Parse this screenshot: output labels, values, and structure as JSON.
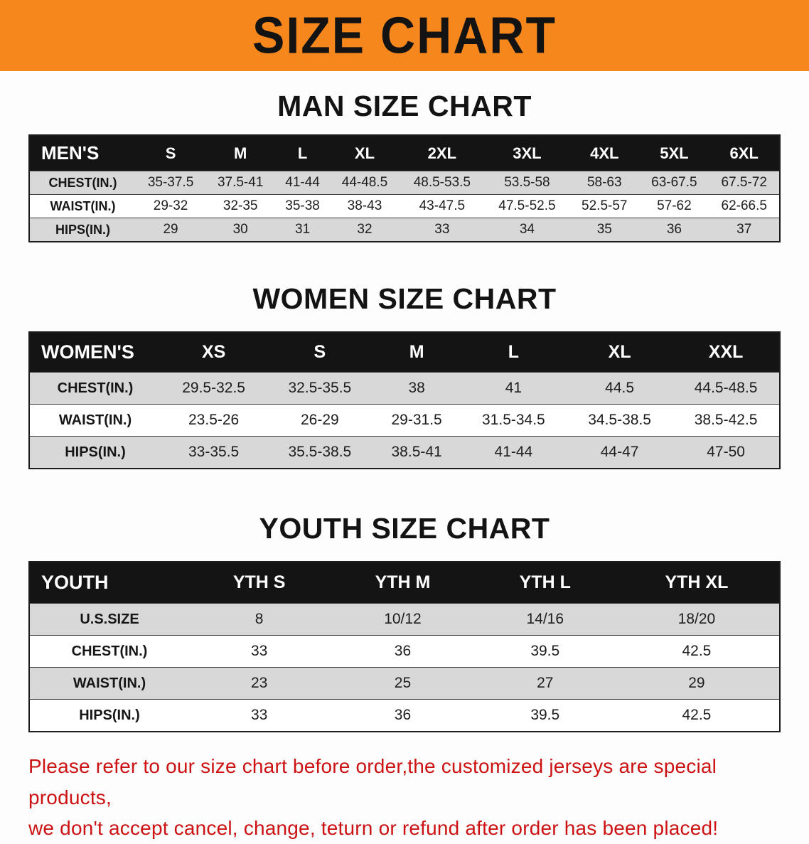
{
  "banner": {
    "title": "SIZE CHART"
  },
  "colors": {
    "banner_bg": "#f6871d",
    "table_header_bg": "#141414",
    "row_shade": "#d8d8d8",
    "disclaimer_red": "#cc1212"
  },
  "sections": [
    {
      "name": "men",
      "heading": "MAN SIZE CHART",
      "table": {
        "title": "MEN'S",
        "columns": [
          "S",
          "M",
          "L",
          "XL",
          "2XL",
          "3XL",
          "4XL",
          "5XL",
          "6XL"
        ],
        "rows": [
          {
            "label": "CHEST(IN.)",
            "values": [
              "35-37.5",
              "37.5-41",
              "41-44",
              "44-48.5",
              "48.5-53.5",
              "53.5-58",
              "58-63",
              "63-67.5",
              "67.5-72"
            ]
          },
          {
            "label": "WAIST(IN.)",
            "values": [
              "29-32",
              "32-35",
              "35-38",
              "38-43",
              "43-47.5",
              "47.5-52.5",
              "52.5-57",
              "57-62",
              "62-66.5"
            ]
          },
          {
            "label": "HIPS(IN.)",
            "values": [
              "29",
              "30",
              "31",
              "32",
              "33",
              "34",
              "35",
              "36",
              "37"
            ]
          }
        ]
      }
    },
    {
      "name": "women",
      "heading": "WOMEN SIZE CHART",
      "table": {
        "title": "WOMEN'S",
        "columns": [
          "XS",
          "S",
          "M",
          "L",
          "XL",
          "XXL"
        ],
        "rows": [
          {
            "label": "CHEST(IN.)",
            "values": [
              "29.5-32.5",
              "32.5-35.5",
              "38",
              "41",
              "44.5",
              "44.5-48.5"
            ]
          },
          {
            "label": "WAIST(IN.)",
            "values": [
              "23.5-26",
              "26-29",
              "29-31.5",
              "31.5-34.5",
              "34.5-38.5",
              "38.5-42.5"
            ]
          },
          {
            "label": "HIPS(IN.)",
            "values": [
              "33-35.5",
              "35.5-38.5",
              "38.5-41",
              "41-44",
              "44-47",
              "47-50"
            ]
          }
        ]
      }
    },
    {
      "name": "youth",
      "heading": "YOUTH SIZE CHART",
      "table": {
        "title": "YOUTH",
        "columns": [
          "YTH S",
          "YTH M",
          "YTH L",
          "YTH XL"
        ],
        "rows": [
          {
            "label": "U.S.SIZE",
            "values": [
              "8",
              "10/12",
              "14/16",
              "18/20"
            ]
          },
          {
            "label": "CHEST(IN.)",
            "values": [
              "33",
              "36",
              "39.5",
              "42.5"
            ]
          },
          {
            "label": "WAIST(IN.)",
            "values": [
              "23",
              "25",
              "27",
              "29"
            ]
          },
          {
            "label": "HIPS(IN.)",
            "values": [
              "33",
              "36",
              "39.5",
              "42.5"
            ]
          }
        ]
      }
    }
  ],
  "disclaimer": {
    "line1": "Please refer to our size chart before order,the customized jerseys are special products,",
    "line2": "we don't accept cancel, change, teturn or refund after order has been placed!"
  }
}
